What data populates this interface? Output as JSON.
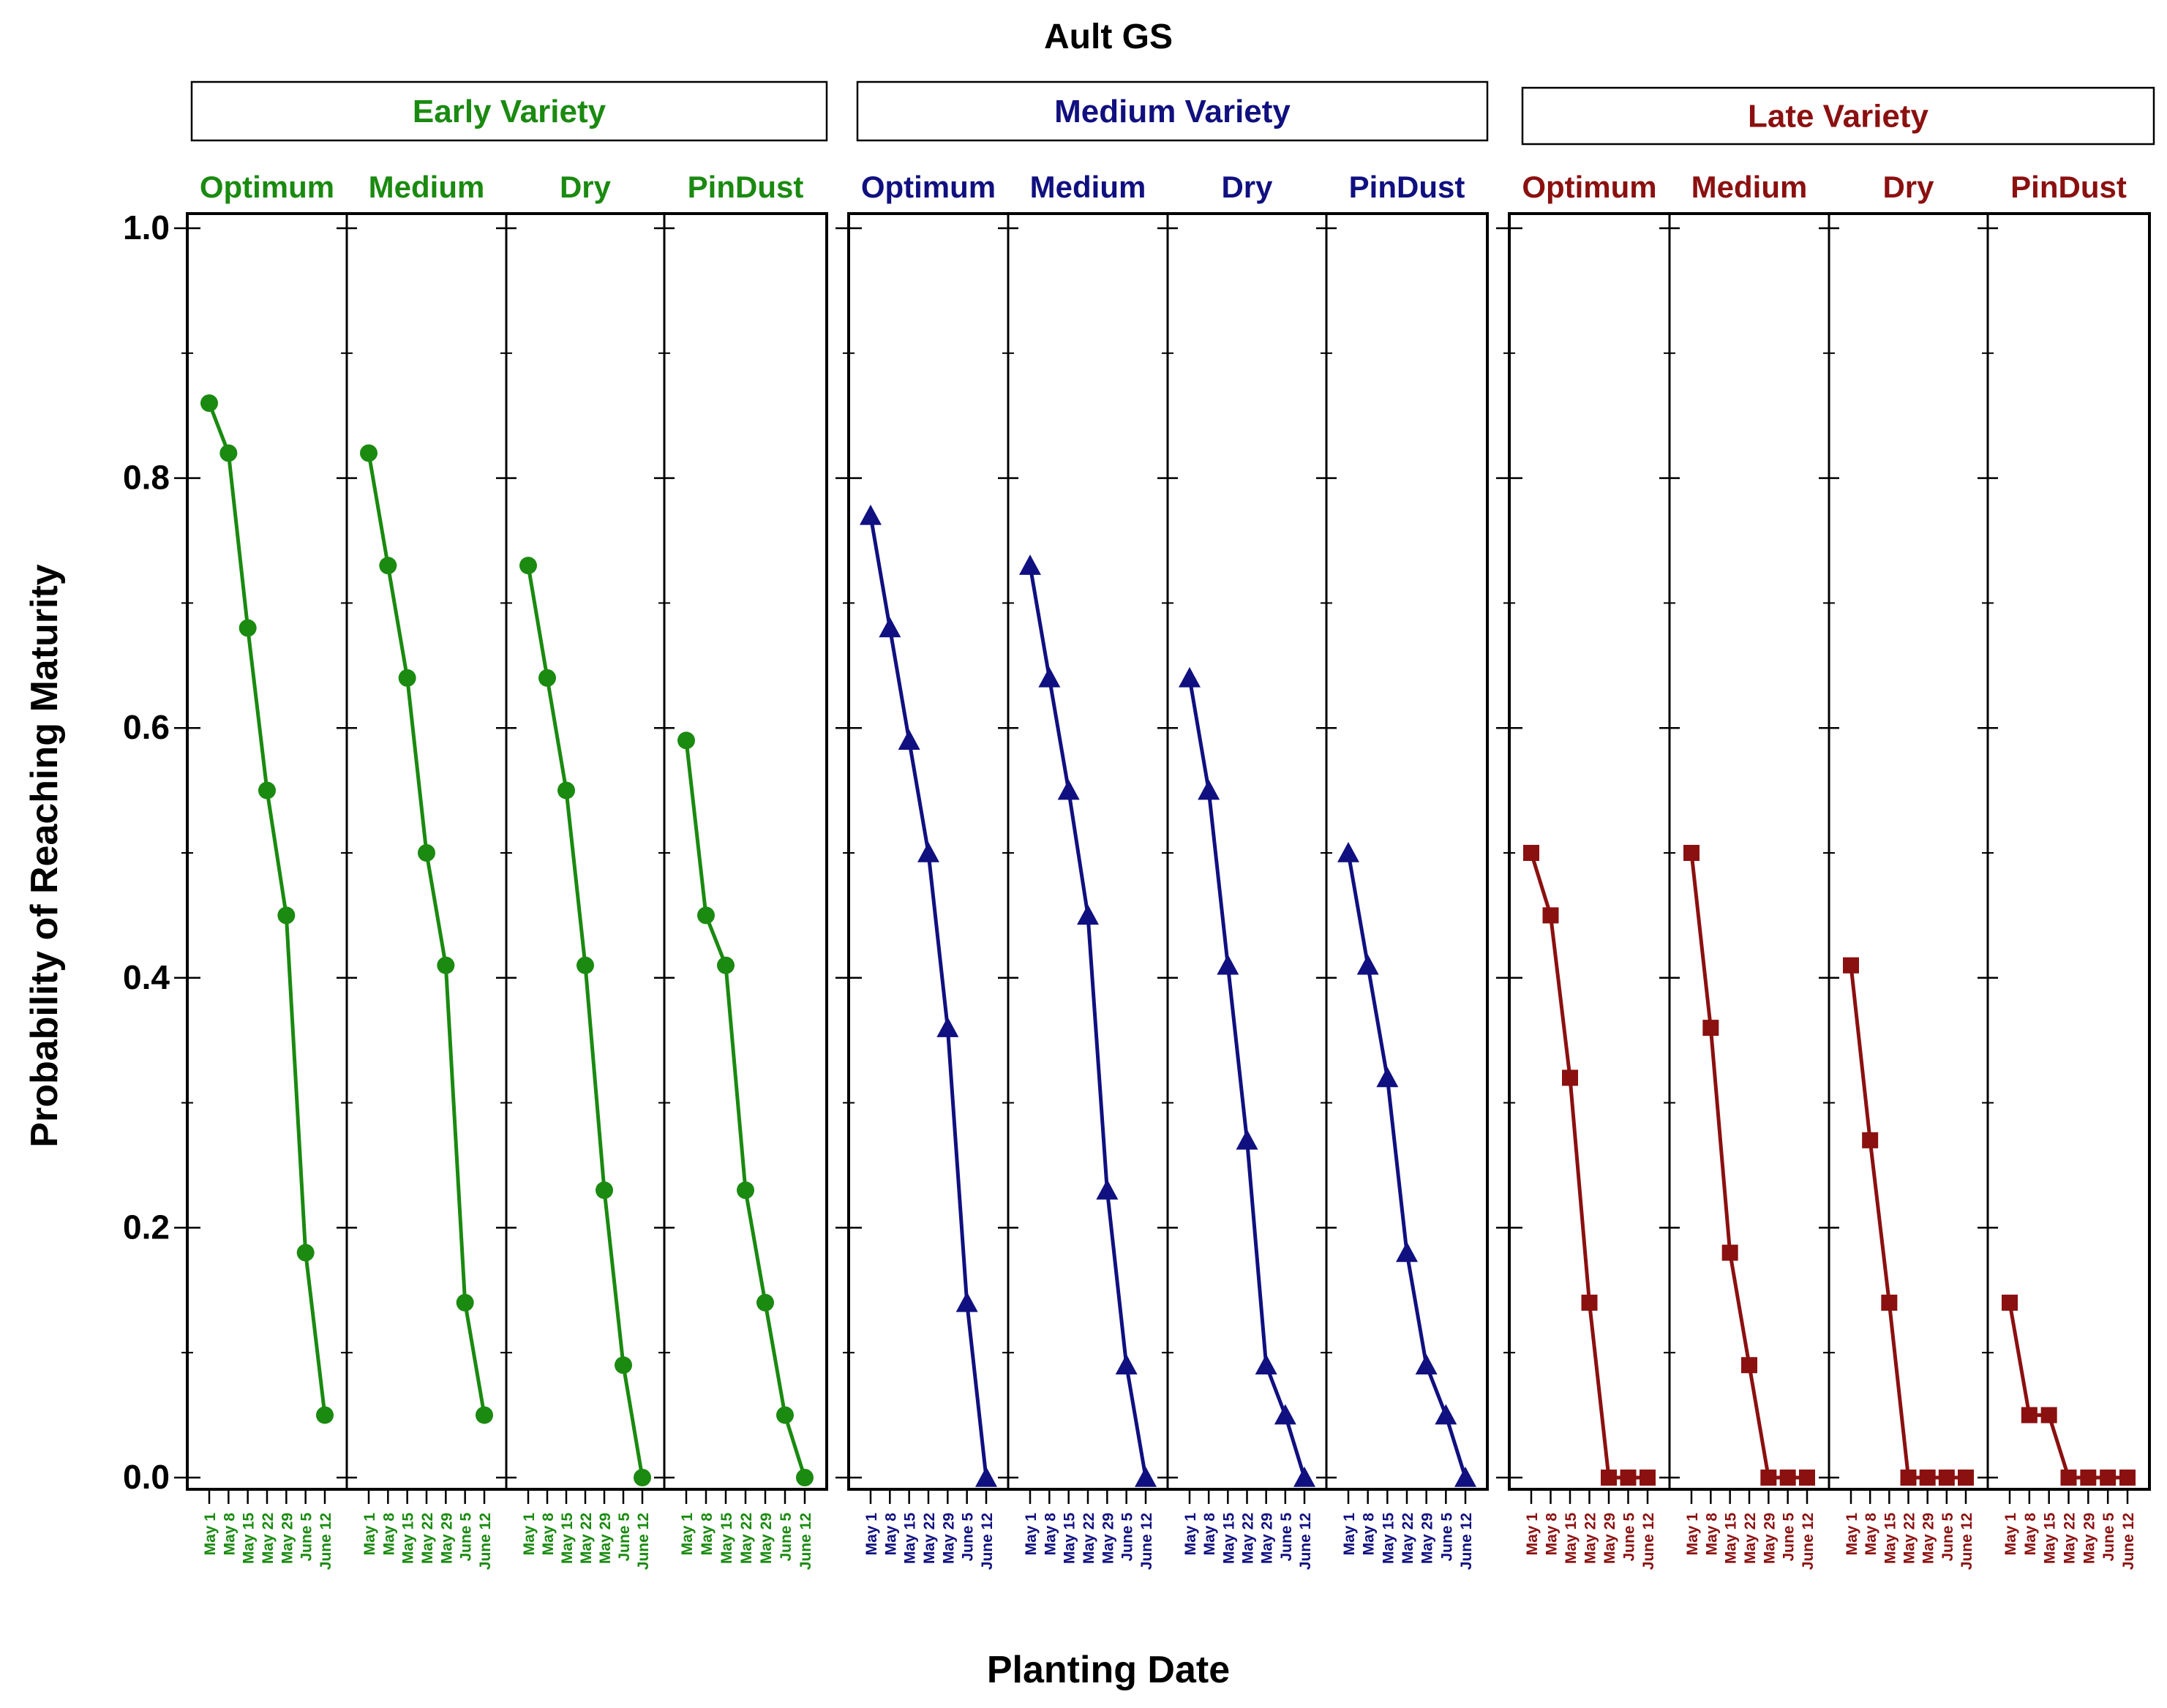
{
  "chart_data": {
    "type": "line",
    "title": "Ault GS",
    "xlabel": "Planting Date",
    "ylabel": "Probability of Reaching Maturity",
    "ylim": [
      0,
      1.0
    ],
    "y_ticks": [
      "0.0",
      "0.2",
      "0.4",
      "0.6",
      "0.8",
      "1.0"
    ],
    "categories": [
      "May 1",
      "May 8",
      "May 15",
      "May 22",
      "May 29",
      "June 5",
      "June 12"
    ],
    "groups": [
      {
        "name": "Early Variety",
        "color": "#1a8a10",
        "marker": "circle",
        "panels": [
          {
            "name": "Optimum",
            "values": [
              0.86,
              0.82,
              0.68,
              0.55,
              0.45,
              0.18,
              0.05
            ]
          },
          {
            "name": "Medium",
            "values": [
              0.82,
              0.73,
              0.64,
              0.5,
              0.41,
              0.14,
              0.05
            ]
          },
          {
            "name": "Dry",
            "values": [
              0.73,
              0.64,
              0.55,
              0.41,
              0.23,
              0.09,
              0.0
            ]
          },
          {
            "name": "PinDust",
            "values": [
              0.59,
              0.45,
              0.41,
              0.23,
              0.14,
              0.05,
              0.0
            ]
          }
        ]
      },
      {
        "name": "Medium Variety",
        "color": "#101080",
        "marker": "triangle",
        "panels": [
          {
            "name": "Optimum",
            "values": [
              0.77,
              0.68,
              0.59,
              0.5,
              0.36,
              0.14,
              0.0
            ]
          },
          {
            "name": "Medium",
            "values": [
              0.73,
              0.64,
              0.55,
              0.45,
              0.23,
              0.09,
              0.0
            ]
          },
          {
            "name": "Dry",
            "values": [
              0.64,
              0.55,
              0.41,
              0.27,
              0.09,
              0.05,
              0.0
            ]
          },
          {
            "name": "PinDust",
            "values": [
              0.5,
              0.41,
              0.32,
              0.18,
              0.09,
              0.05,
              0.0
            ]
          }
        ]
      },
      {
        "name": "Late Variety",
        "color": "#8b1010",
        "marker": "square",
        "panels": [
          {
            "name": "Optimum",
            "values": [
              0.5,
              0.45,
              0.32,
              0.14,
              0.0,
              0.0,
              0.0
            ]
          },
          {
            "name": "Medium",
            "values": [
              0.5,
              0.36,
              0.18,
              0.09,
              0.0,
              0.0,
              0.0
            ]
          },
          {
            "name": "Dry",
            "values": [
              0.41,
              0.27,
              0.14,
              0.0,
              0.0,
              0.0,
              0.0
            ]
          },
          {
            "name": "PinDust",
            "values": [
              0.14,
              0.05,
              0.05,
              0.0,
              0.0,
              0.0,
              0.0
            ]
          }
        ]
      }
    ]
  }
}
